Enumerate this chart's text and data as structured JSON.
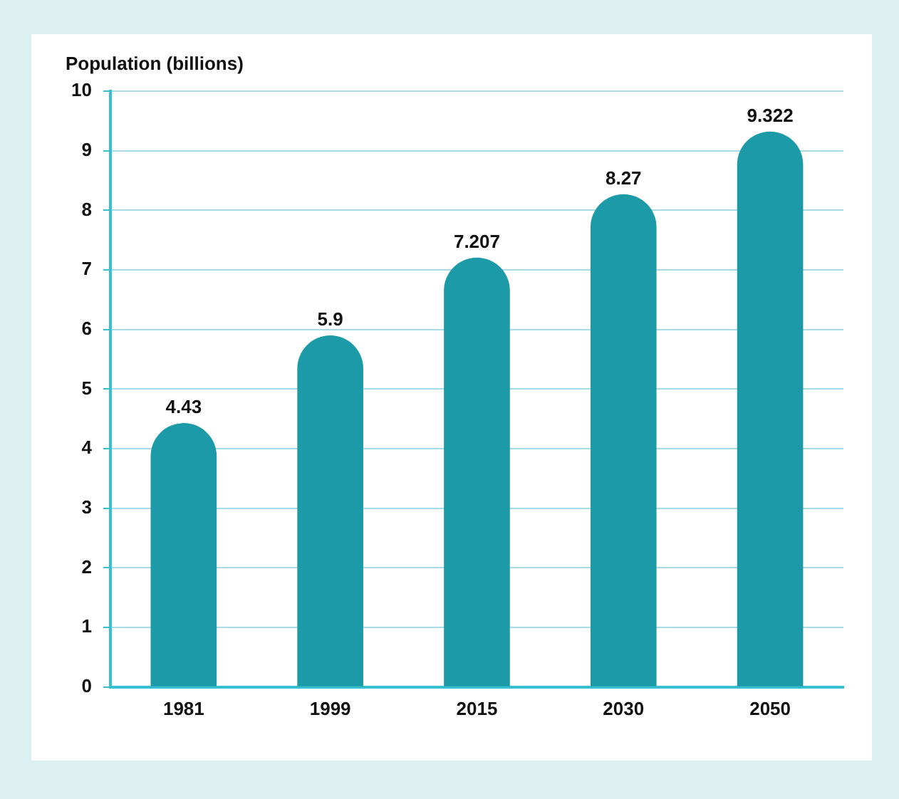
{
  "chart_data": {
    "type": "bar",
    "ylabel": "Population (billions)",
    "categories": [
      "1981",
      "1999",
      "2015",
      "2030",
      "2050"
    ],
    "values": [
      4.43,
      5.9,
      7.207,
      8.27,
      9.322
    ],
    "color": "#1c9aa8",
    "ylim": [
      0,
      10
    ],
    "yticks": [
      0,
      1,
      2,
      3,
      4,
      5,
      6,
      7,
      8,
      9,
      10
    ],
    "grid": "y",
    "data_labels": true,
    "legend": false
  }
}
